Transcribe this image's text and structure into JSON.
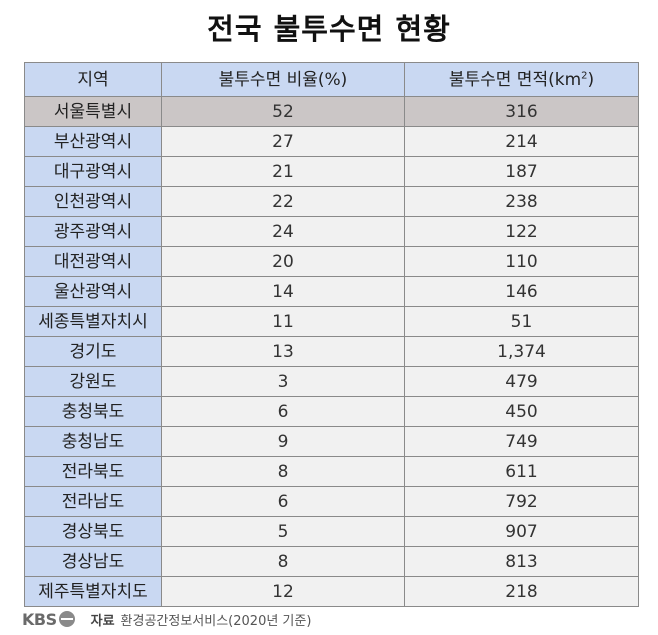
{
  "title": "전국 불투수면 현황",
  "table": {
    "headers": {
      "region": "지역",
      "ratio": "불투수면 비율(%)",
      "area_prefix": "불투수면 면적(km",
      "area_sup": "2",
      "area_suffix": ")"
    },
    "rows": [
      {
        "region": "서울특별시",
        "ratio": "52",
        "area": "316"
      },
      {
        "region": "부산광역시",
        "ratio": "27",
        "area": "214"
      },
      {
        "region": "대구광역시",
        "ratio": "21",
        "area": "187"
      },
      {
        "region": "인천광역시",
        "ratio": "22",
        "area": "238"
      },
      {
        "region": "광주광역시",
        "ratio": "24",
        "area": "122"
      },
      {
        "region": "대전광역시",
        "ratio": "20",
        "area": "110"
      },
      {
        "region": "울산광역시",
        "ratio": "14",
        "area": "146"
      },
      {
        "region": "세종특별자치시",
        "ratio": "11",
        "area": "51"
      },
      {
        "region": "경기도",
        "ratio": "13",
        "area": "1,374"
      },
      {
        "region": "강원도",
        "ratio": "3",
        "area": "479"
      },
      {
        "region": "충청북도",
        "ratio": "6",
        "area": "450"
      },
      {
        "region": "충청남도",
        "ratio": "9",
        "area": "749"
      },
      {
        "region": "전라북도",
        "ratio": "8",
        "area": "611"
      },
      {
        "region": "전라남도",
        "ratio": "6",
        "area": "792"
      },
      {
        "region": "경상북도",
        "ratio": "5",
        "area": "907"
      },
      {
        "region": "경상남도",
        "ratio": "8",
        "area": "813"
      },
      {
        "region": "제주특별자치도",
        "ratio": "12",
        "area": "218"
      }
    ]
  },
  "footer": {
    "logo_text": "KBS",
    "source_label": "자료",
    "source_text": "환경공간정보서비스(2020년 기준)"
  },
  "colors": {
    "header_bg": "#c9d8f2",
    "highlight_row_bg": "#cbc6c6",
    "value_bg": "#f1f1f1"
  }
}
